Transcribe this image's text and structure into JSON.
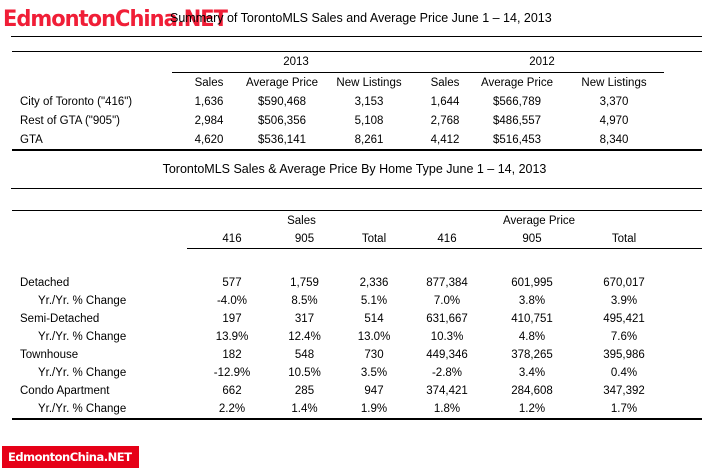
{
  "watermark": {
    "top_text": "EdmontonChina.NET",
    "bottom_text": "EdmontonChina.NET",
    "red": "#f01e37",
    "bottom_box_red": "#e60017"
  },
  "summary_table": {
    "title": "Summary of TorontoMLS Sales and Average Price June 1 – 14, 2013",
    "year_groups": [
      "2013",
      "2012"
    ],
    "columns": [
      "Sales",
      "Average Price",
      "New Listings",
      "Sales",
      "Average Price",
      "New Listings"
    ],
    "rows": [
      {
        "label": "City of Toronto (\"416\")",
        "indent": false,
        "values": [
          "1,636",
          "$590,468",
          "3,153",
          "1,644",
          "$566,789",
          "3,370"
        ]
      },
      {
        "label": "Rest of GTA (\"905\")",
        "indent": false,
        "values": [
          "2,984",
          "$506,356",
          "5,108",
          "2,768",
          "$486,557",
          "4,970"
        ]
      },
      {
        "label": "GTA",
        "indent": false,
        "values": [
          "4,620",
          "$536,141",
          "8,261",
          "4,412",
          "$516,453",
          "8,340"
        ]
      }
    ]
  },
  "hometype_table": {
    "title": "TorontoMLS Sales & Average Price  By Home Type June 1 – 14, 2013",
    "groups": [
      "Sales",
      "Average Price"
    ],
    "columns": [
      "416",
      "905",
      "Total",
      "416",
      "905",
      "Total"
    ],
    "rows": [
      {
        "label": "Detached",
        "indent": false,
        "values": [
          "577",
          "1,759",
          "2,336",
          "877,384",
          "601,995",
          "670,017"
        ]
      },
      {
        "label": "Yr./Yr. % Change",
        "indent": true,
        "values": [
          "-4.0%",
          "8.5%",
          "5.1%",
          "7.0%",
          "3.8%",
          "3.9%"
        ]
      },
      {
        "label": "Semi-Detached",
        "indent": false,
        "values": [
          "197",
          "317",
          "514",
          "631,667",
          "410,751",
          "495,421"
        ]
      },
      {
        "label": "Yr./Yr. % Change",
        "indent": true,
        "values": [
          "13.9%",
          "12.4%",
          "13.0%",
          "10.3%",
          "4.8%",
          "7.6%"
        ]
      },
      {
        "label": "Townhouse",
        "indent": false,
        "values": [
          "182",
          "548",
          "730",
          "449,346",
          "378,265",
          "395,986"
        ]
      },
      {
        "label": "Yr./Yr. % Change",
        "indent": true,
        "values": [
          "-12.9%",
          "10.5%",
          "3.5%",
          "-2.8%",
          "3.4%",
          "0.4%"
        ]
      },
      {
        "label": "Condo Apartment",
        "indent": false,
        "values": [
          "662",
          "285",
          "947",
          "374,421",
          "284,608",
          "347,392"
        ]
      },
      {
        "label": "Yr./Yr. % Change",
        "indent": true,
        "values": [
          "2.2%",
          "1.4%",
          "1.9%",
          "1.8%",
          "1.2%",
          "1.7%"
        ]
      }
    ]
  }
}
